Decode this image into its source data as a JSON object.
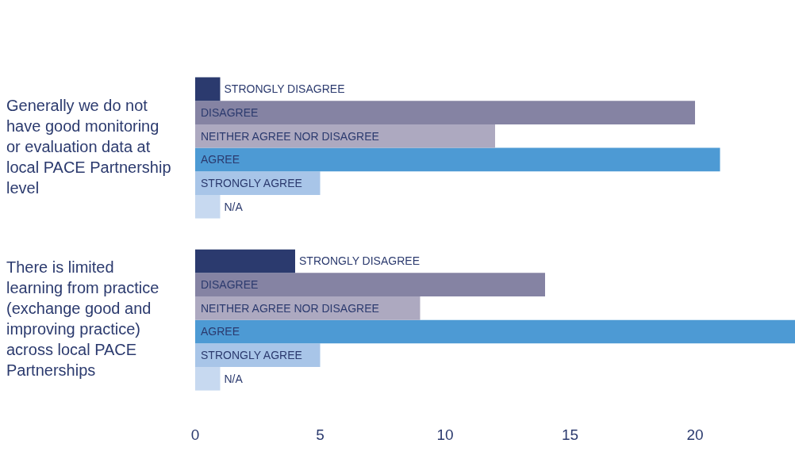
{
  "chart_data": {
    "type": "bar",
    "orientation": "horizontal",
    "categories": [
      "Generally we do not have good monitoring or evaluation data at local PACE Partnership level",
      "There is limited learning from practice (exchange good and improving practice) across local PACE Partnerships"
    ],
    "series": [
      {
        "name": "STRONGLY DISAGREE",
        "color": "#2b3a6e",
        "values": [
          1,
          4
        ]
      },
      {
        "name": "DISAGREE",
        "color": "#8583a3",
        "values": [
          20,
          14
        ]
      },
      {
        "name": "NEITHER AGREE NOR DISAGREE",
        "color": "#ada9c0",
        "values": [
          12,
          9
        ]
      },
      {
        "name": "AGREE",
        "color": "#4d9ad4",
        "values": [
          21,
          24
        ]
      },
      {
        "name": "STRONGLY AGREE",
        "color": "#a8c5e8",
        "values": [
          5,
          5
        ]
      },
      {
        "name": "N/A",
        "color": "#c7d9f0",
        "values": [
          1,
          1
        ]
      }
    ],
    "xlim": [
      0,
      24
    ],
    "xticks": [
      0,
      5,
      10,
      15,
      20
    ],
    "grid": false,
    "legend": false
  }
}
